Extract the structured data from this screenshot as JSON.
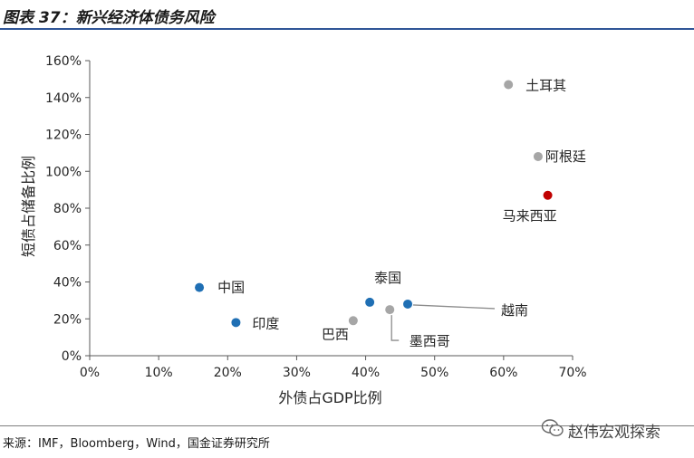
{
  "header": {
    "title": "图表 37：新兴经济体债务风险"
  },
  "footer": {
    "source": "来源：IMF，Bloomberg，Wind，国金证券研究所"
  },
  "watermark": {
    "text": "赵伟宏观探索",
    "icon": "wechat-icon"
  },
  "colors": {
    "blue": "#1f6fb4",
    "gray": "#a6a6a6",
    "red": "#c00000",
    "title_rule": "#2f5597"
  },
  "chart_data": {
    "type": "scatter",
    "xlabel": "外债占GDP比例",
    "ylabel": "短债占储备比例",
    "xlim": [
      0,
      70
    ],
    "ylim": [
      0,
      160
    ],
    "x_ticks": [
      0,
      10,
      20,
      30,
      40,
      50,
      60,
      70
    ],
    "y_ticks": [
      0,
      20,
      40,
      60,
      80,
      100,
      120,
      140,
      160
    ],
    "x_tick_labels": [
      "0%",
      "10%",
      "20%",
      "30%",
      "40%",
      "50%",
      "60%",
      "70%"
    ],
    "y_tick_labels": [
      "0%",
      "20%",
      "40%",
      "60%",
      "80%",
      "100%",
      "120%",
      "140%",
      "160%"
    ],
    "grid": false,
    "points": [
      {
        "label": "中国",
        "x": 15.9,
        "y": 37,
        "color": "blue"
      },
      {
        "label": "印度",
        "x": 21.2,
        "y": 18,
        "color": "blue"
      },
      {
        "label": "泰国",
        "x": 40.6,
        "y": 29,
        "color": "blue"
      },
      {
        "label": "越南",
        "x": 46.1,
        "y": 28,
        "color": "blue"
      },
      {
        "label": "巴西",
        "x": 38.2,
        "y": 19,
        "color": "gray"
      },
      {
        "label": "墨西哥",
        "x": 43.5,
        "y": 25,
        "color": "gray"
      },
      {
        "label": "土耳其",
        "x": 60.7,
        "y": 147,
        "color": "gray"
      },
      {
        "label": "阿根廷",
        "x": 65.0,
        "y": 108,
        "color": "gray"
      },
      {
        "label": "马来西亚",
        "x": 66.4,
        "y": 87,
        "color": "red"
      }
    ]
  }
}
